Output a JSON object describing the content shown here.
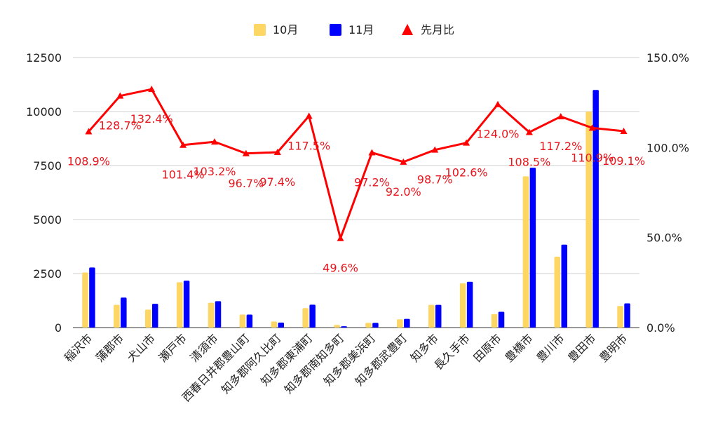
{
  "chart_data": {
    "type": "bar",
    "categories": [
      "稲沢市",
      "蒲郡市",
      "犬山市",
      "瀬戸市",
      "清須市",
      "西春日井郡豊山町",
      "知多郡阿久比町",
      "知多郡東浦町",
      "知多郡南知多町",
      "知多郡美浜町",
      "知多郡武豊町",
      "知多市",
      "長久手市",
      "田原市",
      "豊橋市",
      "豊川市",
      "豊田市",
      "豊明市"
    ],
    "series": [
      {
        "name": "10月",
        "type": "bar",
        "axis": "left",
        "color": "#fdd663",
        "values": [
          2550,
          1050,
          830,
          2100,
          1150,
          600,
          280,
          900,
          120,
          220,
          380,
          1050,
          2050,
          620,
          7000,
          3280,
          10000,
          1000
        ]
      },
      {
        "name": "11月",
        "type": "bar",
        "axis": "left",
        "color": "#0000ff",
        "values": [
          2780,
          1390,
          1100,
          2170,
          1220,
          600,
          230,
          1060,
          60,
          220,
          400,
          1050,
          2120,
          730,
          7400,
          3840,
          11000,
          1120
        ]
      },
      {
        "name": "先月比",
        "type": "line",
        "axis": "right",
        "color": "#ff0000",
        "values": [
          108.9,
          128.7,
          132.4,
          101.4,
          103.2,
          96.7,
          97.4,
          117.5,
          49.6,
          97.2,
          92.0,
          98.7,
          102.6,
          124.0,
          108.5,
          117.2,
          110.9,
          109.1
        ],
        "labels": [
          "108.9%",
          "128.7%",
          "132.4%",
          "101.4%",
          "103.2%",
          "96.7%",
          "97.4%",
          "117.5%",
          "49.6%",
          "97.2%",
          "92.0%",
          "98.7%",
          "102.6%",
          "124.0%",
          "108.5%",
          "117.2%",
          "110.9%",
          "109.1%"
        ]
      }
    ],
    "y_left": {
      "min": 0,
      "max": 12500,
      "ticks": [
        "0",
        "2500",
        "5000",
        "7500",
        "10000",
        "12500"
      ]
    },
    "y_right": {
      "min": 0,
      "max": 150,
      "ticks": [
        "0.0%",
        "50.0%",
        "100.0%",
        "150.0%"
      ]
    },
    "legend": {
      "position": "top",
      "items": [
        "10月",
        "11月",
        "先月比"
      ]
    },
    "grid": true
  }
}
